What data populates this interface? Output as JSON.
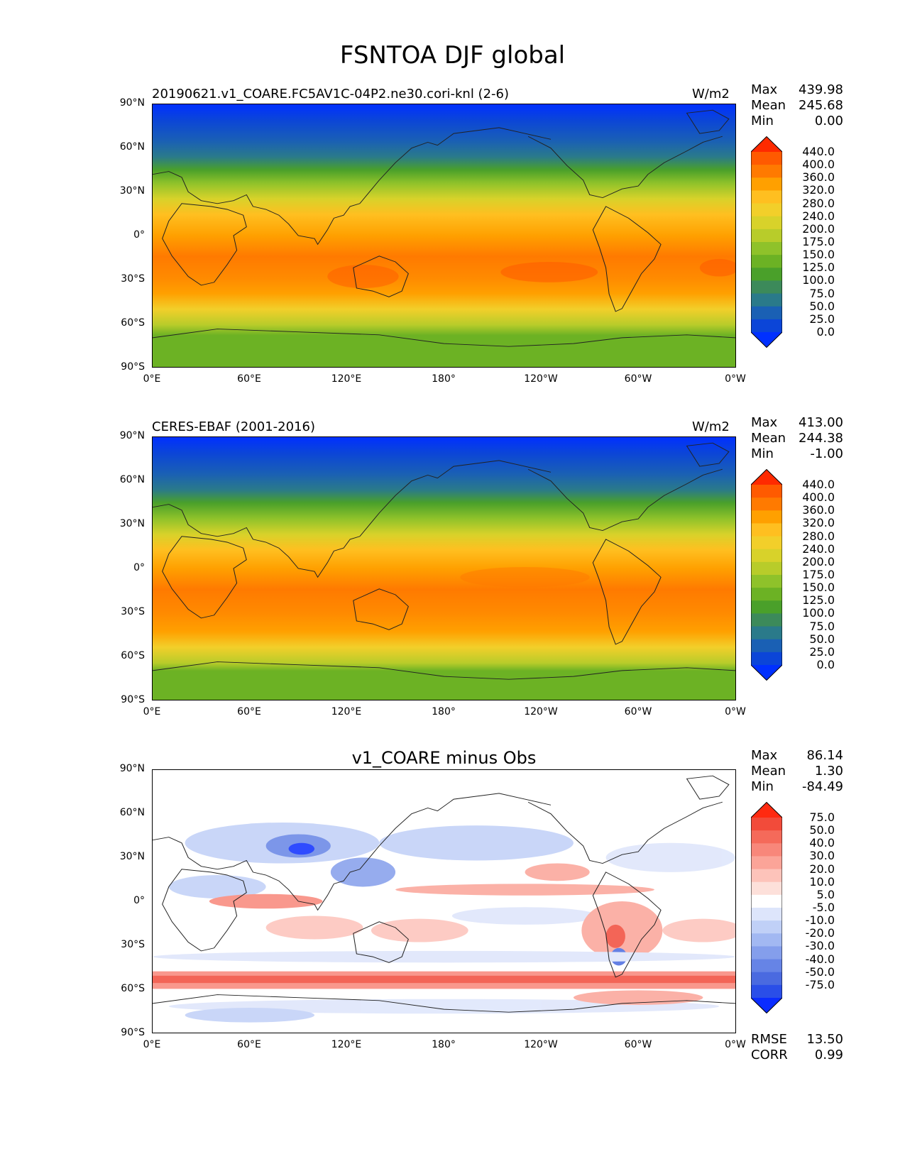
{
  "title": "FSNTOA DJF global",
  "x_ticks": [
    "0°E",
    "60°E",
    "120°E",
    "180°",
    "120°W",
    "60°W",
    "0°W"
  ],
  "y_ticks": [
    "90°N",
    "60°N",
    "30°N",
    "0°",
    "30°S",
    "60°S",
    "90°S"
  ],
  "panels": [
    {
      "subtitle": "20190621.v1_COARE.FC5AV1C-04P2.ne30.cori-knl (2-6)",
      "units": "W/m2",
      "stats": {
        "max_label": "Max",
        "max": "439.98",
        "mean_label": "Mean",
        "mean": "245.68",
        "min_label": "Min",
        "min": "0.00"
      },
      "colorbar_labels": [
        "440.0",
        "400.0",
        "360.0",
        "320.0",
        "280.0",
        "240.0",
        "200.0",
        "175.0",
        "150.0",
        "125.0",
        "100.0",
        "75.0",
        "50.0",
        "25.0",
        "0.0"
      ],
      "colorbar_colors": [
        "#ff2a00",
        "#ff5a00",
        "#ff7a00",
        "#ffa000",
        "#ffbf20",
        "#f2cf2a",
        "#d8d22a",
        "#b8cc2a",
        "#8fc22a",
        "#6cb224",
        "#4aa02a",
        "#3c8a5a",
        "#2a7a8a",
        "#1a60b4",
        "#0b45d8",
        "#0030ff"
      ]
    },
    {
      "subtitle": "CERES-EBAF (2001-2016)",
      "units": "W/m2",
      "stats": {
        "max_label": "Max",
        "max": "413.00",
        "mean_label": "Mean",
        "mean": "244.38",
        "min_label": "Min",
        "min": "-1.00"
      },
      "colorbar_labels": [
        "440.0",
        "400.0",
        "360.0",
        "320.0",
        "280.0",
        "240.0",
        "200.0",
        "175.0",
        "150.0",
        "125.0",
        "100.0",
        "75.0",
        "50.0",
        "25.0",
        "0.0"
      ],
      "colorbar_colors": [
        "#ff2a00",
        "#ff5a00",
        "#ff7a00",
        "#ffa000",
        "#ffbf20",
        "#f2cf2a",
        "#d8d22a",
        "#b8cc2a",
        "#8fc22a",
        "#6cb224",
        "#4aa02a",
        "#3c8a5a",
        "#2a7a8a",
        "#1a60b4",
        "#0b45d8",
        "#0030ff"
      ]
    },
    {
      "subtitle": "v1_COARE minus Obs",
      "units": "",
      "stats": {
        "max_label": "Max",
        "max": "86.14",
        "mean_label": "Mean",
        "mean": "1.30",
        "min_label": "Min",
        "min": "-84.49"
      },
      "colorbar_labels": [
        "75.0",
        "50.0",
        "40.0",
        "30.0",
        "20.0",
        "10.0",
        "5.0",
        "-5.0",
        "-10.0",
        "-20.0",
        "-30.0",
        "-40.0",
        "-50.0",
        "-75.0"
      ],
      "colorbar_colors": [
        "#ff2a10",
        "#f24b3a",
        "#f56a5a",
        "#f8877a",
        "#fba498",
        "#fdc3ba",
        "#fde0da",
        "#ffffff",
        "#dde5fb",
        "#c0d0f7",
        "#a2b8f2",
        "#849eec",
        "#6684e6",
        "#4a6ae0",
        "#2a4ee8",
        "#0a2cff"
      ],
      "extra": {
        "rmse_label": "RMSE",
        "rmse": "13.50",
        "corr_label": "CORR",
        "corr": "0.99"
      }
    }
  ]
}
